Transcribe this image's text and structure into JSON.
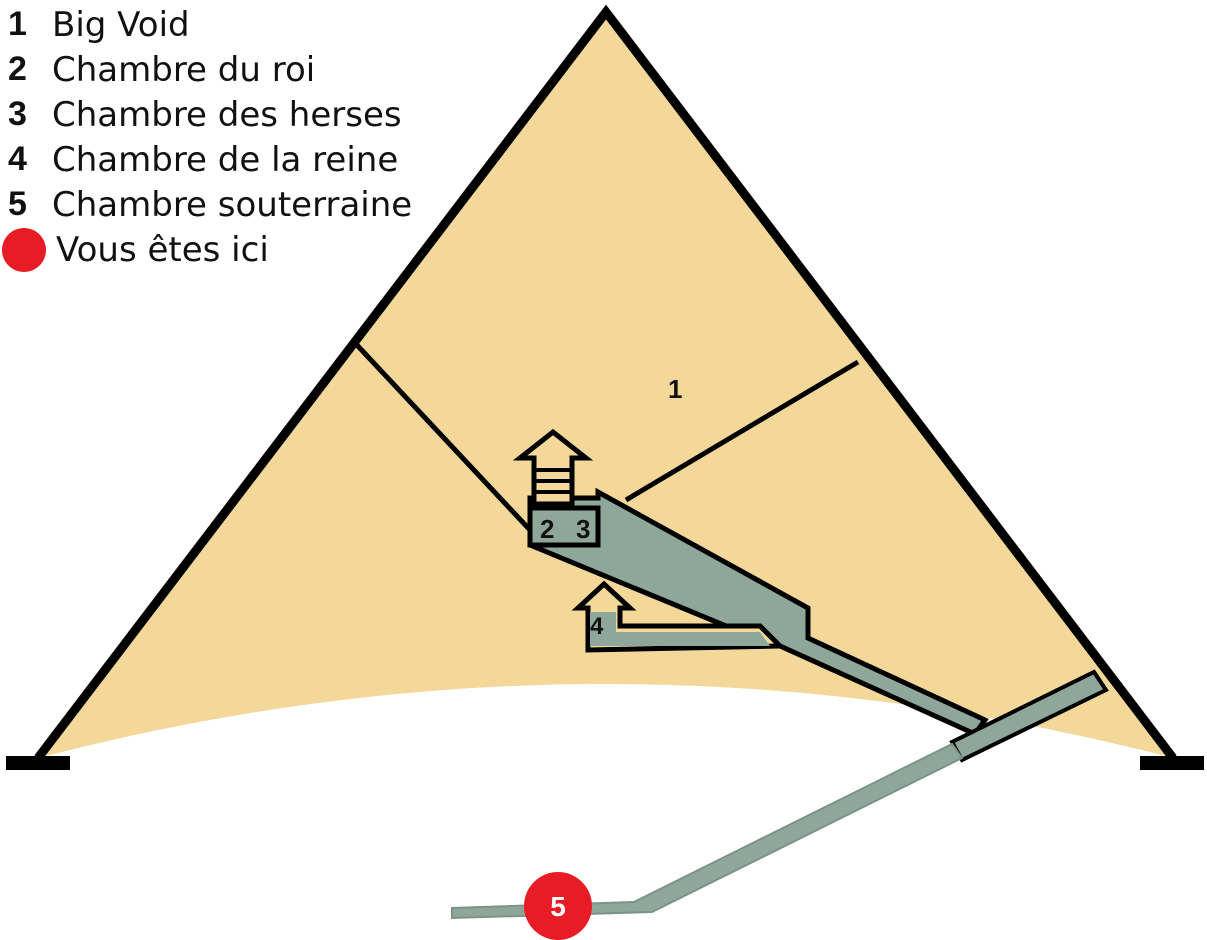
{
  "legend": [
    {
      "number": "1",
      "label": "Big Void"
    },
    {
      "number": "2",
      "label": "Chambre du roi"
    },
    {
      "number": "3",
      "label": "Chambre des herses"
    },
    {
      "number": "4",
      "label": "Chambre de la reine"
    },
    {
      "number": "5",
      "label": "Chambre souterraine"
    }
  ],
  "you_are_here": "Vous êtes ici",
  "markers": {
    "big_void": "1",
    "kings_chamber": "2",
    "portcullis_chamber": "3",
    "queens_chamber": "4",
    "subterranean_chamber": "5"
  },
  "colors": {
    "pyramid_fill": "#f3d89a",
    "passage_fill": "#8fa79b",
    "outline": "#000000",
    "marker_red": "#e81c24"
  }
}
